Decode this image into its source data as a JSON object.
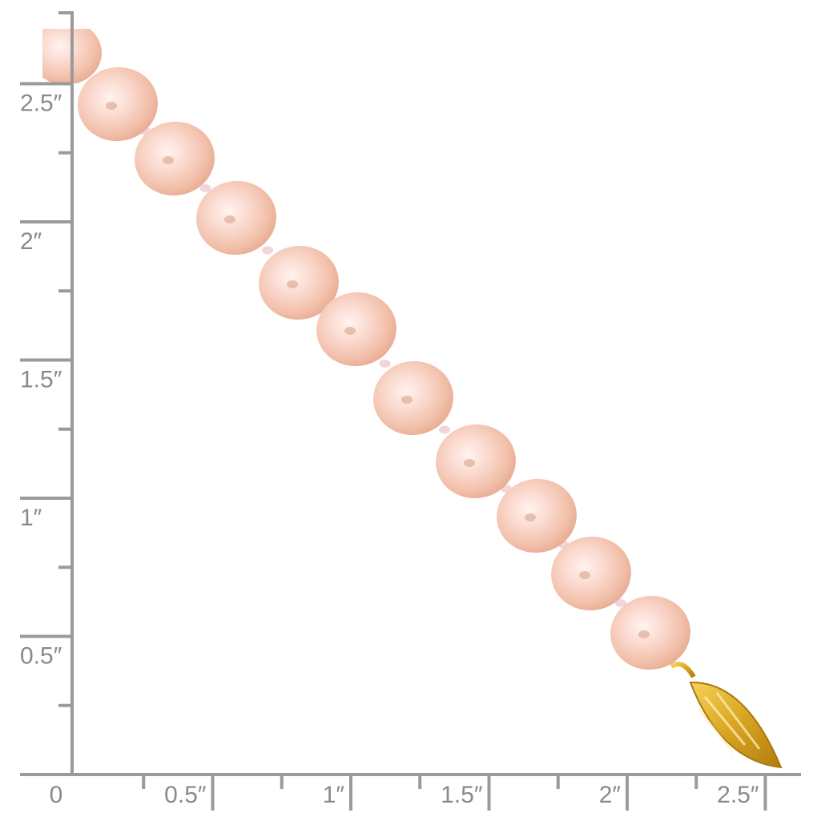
{
  "ruler": {
    "unit_symbol": "″",
    "color": "#9a9a9a",
    "vertical_labels": [
      "2.5″",
      "2″",
      "1.5″",
      "1″",
      "0.5″"
    ],
    "vertical_values": [
      2.5,
      2,
      1.5,
      1,
      0.5
    ],
    "horizontal_labels": [
      "0",
      "0.5″",
      "1″",
      "1.5″",
      "2″",
      "2.5″"
    ],
    "horizontal_values": [
      0,
      0.5,
      1,
      1.5,
      2,
      2.5
    ]
  },
  "product": {
    "pearl_count_visible": 11,
    "pearl_color": "#f4c7b8",
    "clasp_color": "#d9a520",
    "icons": [
      "pearl",
      "filigree-clasp"
    ]
  }
}
